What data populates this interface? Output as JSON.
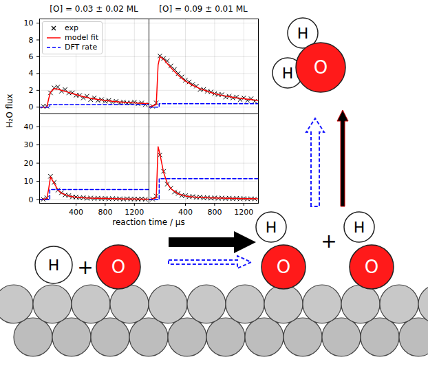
{
  "chart_data": [
    {
      "type": "line",
      "title": "[O] = 0.03 ± 0.02 ML",
      "xlim": [
        -100,
        1400
      ],
      "xticks": [
        400,
        800,
        1200
      ],
      "ylim": [
        -0.8,
        10.5
      ],
      "yticks": [
        0,
        2,
        4,
        6,
        8,
        10
      ],
      "grid": true,
      "tick_labels": "y",
      "legend": "upper left",
      "series": [
        {
          "name": "exp",
          "type": "scatter",
          "marker": "x",
          "color": "#000000",
          "x": [
            -50,
            0,
            50,
            100,
            150,
            200,
            250,
            300,
            350,
            400,
            450,
            500,
            550,
            600,
            650,
            700,
            750,
            800,
            850,
            900,
            950,
            1000,
            1050,
            1100,
            1150,
            1200,
            1250,
            1300,
            1350
          ],
          "values": [
            0.1,
            0.1,
            1.7,
            2.3,
            2.4,
            1.9,
            2.1,
            1.7,
            1.7,
            1.4,
            1.4,
            1.1,
            1.3,
            0.9,
            1.1,
            0.8,
            0.9,
            0.7,
            0.8,
            0.6,
            0.7,
            0.5,
            0.6,
            0.5,
            0.5,
            0.6,
            0.4,
            0.5,
            0.3
          ]
        },
        {
          "name": "model fit",
          "type": "line",
          "line_style": "solid",
          "color": "#ff0000",
          "x": [
            -100,
            0,
            25,
            50,
            100,
            150,
            200,
            300,
            400,
            500,
            600,
            700,
            800,
            900,
            1000,
            1100,
            1200,
            1300,
            1400
          ],
          "values": [
            0,
            0,
            1.0,
            1.8,
            2.2,
            2.15,
            2.0,
            1.75,
            1.5,
            1.25,
            1.05,
            0.92,
            0.8,
            0.7,
            0.62,
            0.55,
            0.5,
            0.45,
            0.4
          ]
        },
        {
          "name": "DFT rate",
          "type": "line",
          "line_style": "dashed",
          "color": "#0000ff",
          "x": [
            -100,
            40,
            40,
            1400
          ],
          "values": [
            0,
            0,
            0.3,
            0.3
          ]
        }
      ]
    },
    {
      "type": "line",
      "title": "[O] = 0.09 ± 0.01 ML",
      "xlim": [
        -100,
        1400
      ],
      "xticks": [
        400,
        800,
        1200
      ],
      "ylim": [
        -0.8,
        10.5
      ],
      "yticks": [
        0,
        2,
        4,
        6,
        8,
        10
      ],
      "grid": true,
      "tick_labels": false,
      "series": [
        {
          "name": "exp",
          "type": "scatter",
          "marker": "x",
          "color": "#000000",
          "x": [
            -50,
            0,
            50,
            100,
            150,
            200,
            250,
            300,
            350,
            400,
            450,
            500,
            550,
            600,
            650,
            700,
            750,
            800,
            850,
            900,
            950,
            1000,
            1050,
            1100,
            1150,
            1200,
            1250,
            1300,
            1350
          ],
          "values": [
            0.1,
            0.5,
            6.1,
            5.8,
            5.5,
            4.9,
            4.5,
            4.0,
            3.6,
            3.2,
            3.0,
            2.7,
            2.5,
            2.1,
            2.1,
            1.9,
            1.8,
            1.6,
            1.5,
            1.5,
            1.2,
            1.3,
            1.1,
            1.2,
            0.9,
            1.1,
            0.8,
            1.0,
            0.7
          ]
        },
        {
          "name": "model fit",
          "type": "line",
          "line_style": "solid",
          "color": "#ff0000",
          "x": [
            -100,
            0,
            25,
            50,
            100,
            150,
            200,
            300,
            400,
            500,
            600,
            700,
            800,
            900,
            1000,
            1100,
            1200,
            1300,
            1400
          ],
          "values": [
            0,
            0.3,
            5.0,
            6.0,
            5.7,
            5.2,
            4.7,
            3.8,
            3.1,
            2.6,
            2.2,
            1.9,
            1.6,
            1.4,
            1.25,
            1.1,
            1.0,
            0.9,
            0.8
          ]
        },
        {
          "name": "DFT rate",
          "type": "line",
          "line_style": "dashed",
          "color": "#0000ff",
          "x": [
            -100,
            40,
            40,
            1400
          ],
          "values": [
            0,
            0,
            0.4,
            0.4
          ]
        }
      ]
    },
    {
      "type": "line",
      "xlim": [
        -100,
        1400
      ],
      "xticks": [
        400,
        800,
        1200
      ],
      "ylim": [
        -2,
        47
      ],
      "yticks": [
        0,
        10,
        20,
        30,
        40
      ],
      "grid": true,
      "tick_labels": true,
      "series": [
        {
          "name": "exp",
          "type": "scatter",
          "marker": "x",
          "color": "#000000",
          "x": [
            -50,
            0,
            50,
            100,
            150,
            200,
            250,
            300,
            350,
            400,
            450,
            500,
            550,
            600,
            650,
            700,
            750,
            800,
            850,
            900,
            950,
            1000,
            1050,
            1100,
            1150,
            1200,
            1250,
            1300,
            1350
          ],
          "values": [
            0.2,
            1.0,
            12.8,
            9.5,
            5.2,
            3.8,
            2.6,
            2.2,
            1.5,
            1.4,
            1.0,
            1.1,
            0.7,
            0.9,
            0.6,
            0.8,
            0.5,
            0.7,
            0.4,
            0.6,
            0.4,
            0.5,
            0.3,
            0.5,
            0.3,
            0.4,
            0.2,
            0.4,
            0.2
          ]
        },
        {
          "name": "model fit",
          "type": "line",
          "line_style": "solid",
          "color": "#ff0000",
          "x": [
            -100,
            0,
            25,
            50,
            100,
            150,
            200,
            300,
            400,
            500,
            600,
            700,
            800,
            900,
            1000,
            1100,
            1200,
            1300,
            1400
          ],
          "values": [
            0,
            0.5,
            6,
            12.5,
            9,
            5.5,
            3.5,
            2,
            1.3,
            1.0,
            0.8,
            0.7,
            0.6,
            0.5,
            0.45,
            0.4,
            0.35,
            0.3,
            0.3
          ]
        },
        {
          "name": "DFT rate",
          "type": "line",
          "line_style": "dashed",
          "color": "#0000ff",
          "x": [
            -100,
            40,
            40,
            1400
          ],
          "values": [
            0,
            0,
            5.5,
            5.5
          ]
        }
      ]
    },
    {
      "type": "line",
      "xlim": [
        -100,
        1400
      ],
      "xticks": [
        400,
        800,
        1200
      ],
      "ylim": [
        -2,
        47
      ],
      "yticks": [
        0,
        10,
        20,
        30,
        40
      ],
      "grid": true,
      "tick_labels": "x",
      "series": [
        {
          "name": "exp",
          "type": "scatter",
          "marker": "x",
          "color": "#000000",
          "x": [
            -50,
            0,
            50,
            100,
            150,
            200,
            250,
            300,
            350,
            400,
            450,
            500,
            550,
            600,
            650,
            700,
            750,
            800,
            850,
            900,
            950,
            1000,
            1050,
            1100,
            1150,
            1200,
            1250,
            1300,
            1350
          ],
          "values": [
            0.3,
            2.0,
            24.5,
            15.5,
            8.5,
            6.3,
            4.2,
            3.4,
            2.3,
            2.2,
            1.6,
            1.7,
            1.2,
            1.4,
            1.0,
            1.1,
            0.8,
            1.0,
            0.7,
            0.9,
            0.6,
            0.8,
            0.5,
            0.7,
            0.5,
            0.6,
            0.4,
            0.5,
            0.4
          ]
        },
        {
          "name": "model fit",
          "type": "line",
          "line_style": "solid",
          "color": "#ff0000",
          "x": [
            -100,
            0,
            25,
            50,
            100,
            150,
            200,
            300,
            400,
            500,
            600,
            700,
            800,
            900,
            1000,
            1100,
            1200,
            1300,
            1400
          ],
          "values": [
            0,
            1.0,
            29,
            25,
            15,
            9,
            6,
            3.2,
            2.0,
            1.5,
            1.2,
            1.0,
            0.9,
            0.8,
            0.7,
            0.6,
            0.55,
            0.5,
            0.45
          ]
        },
        {
          "name": "DFT rate",
          "type": "line",
          "line_style": "dashed",
          "color": "#0000ff",
          "x": [
            -100,
            40,
            40,
            1400
          ],
          "values": [
            0,
            0,
            11.5,
            11.5
          ]
        }
      ]
    }
  ],
  "y_label": "H₂O flux",
  "x_label": "reaction time / µs",
  "diagram": {
    "reactant_atoms": [
      "H",
      "O"
    ],
    "plus": "+",
    "product_pairs": [
      [
        "H",
        "O"
      ],
      [
        "H",
        "O"
      ]
    ],
    "molecule_atoms": [
      "H",
      "H",
      "O"
    ]
  }
}
